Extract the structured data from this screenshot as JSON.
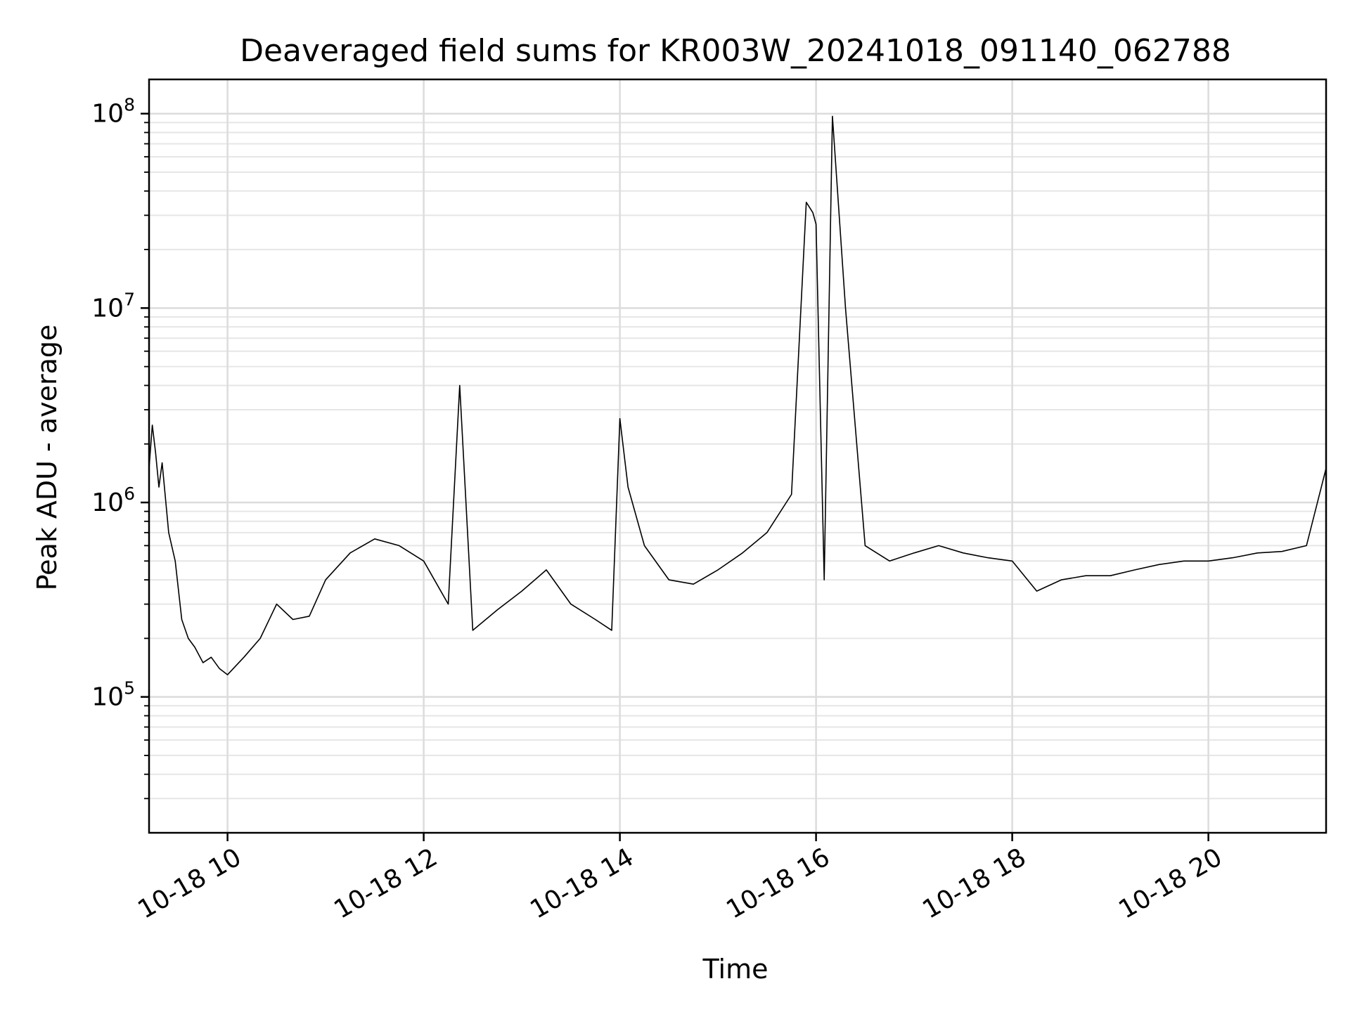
{
  "chart_data": {
    "type": "line",
    "title": "Deaveraged field sums for KR003W_20241018_091140_062788",
    "xlabel": "Time",
    "ylabel": "Peak ADU - average",
    "yscale": "log",
    "grid": true,
    "line_color": "#000000",
    "xlim": [
      "10-18 09:12",
      "10-18 21:12"
    ],
    "ylim": [
      20000,
      150000000
    ],
    "x_ticks": [
      {
        "label": "10-18 10",
        "hour": 10
      },
      {
        "label": "10-18 12",
        "hour": 12
      },
      {
        "label": "10-18 14",
        "hour": 14
      },
      {
        "label": "10-18 16",
        "hour": 16
      },
      {
        "label": "10-18 18",
        "hour": 18
      },
      {
        "label": "10-18 20",
        "hour": 20
      }
    ],
    "y_ticks": [
      {
        "base": "10",
        "exp": "5",
        "value": 100000
      },
      {
        "base": "10",
        "exp": "6",
        "value": 1000000
      },
      {
        "base": "10",
        "exp": "7",
        "value": 10000000
      },
      {
        "base": "10",
        "exp": "8",
        "value": 100000000
      }
    ],
    "series": [
      {
        "x": [
          "10-18 09:12",
          "10-18 09:14",
          "10-18 09:16",
          "10-18 09:18",
          "10-18 09:20",
          "10-18 09:24",
          "10-18 09:28",
          "10-18 09:32",
          "10-18 09:36",
          "10-18 09:40",
          "10-18 09:45",
          "10-18 09:50",
          "10-18 09:55",
          "10-18 10:00",
          "10-18 10:10",
          "10-18 10:20",
          "10-18 10:30",
          "10-18 10:40",
          "10-18 10:50",
          "10-18 11:00",
          "10-18 11:15",
          "10-18 11:30",
          "10-18 11:45",
          "10-18 12:00",
          "10-18 12:15",
          "10-18 12:22",
          "10-18 12:30",
          "10-18 12:45",
          "10-18 13:00",
          "10-18 13:15",
          "10-18 13:30",
          "10-18 13:45",
          "10-18 13:55",
          "10-18 14:00",
          "10-18 14:05",
          "10-18 14:15",
          "10-18 14:30",
          "10-18 14:45",
          "10-18 15:00",
          "10-18 15:15",
          "10-18 15:30",
          "10-18 15:45",
          "10-18 15:54",
          "10-18 15:58",
          "10-18 16:00",
          "10-18 16:05",
          "10-18 16:10",
          "10-18 16:18",
          "10-18 16:30",
          "10-18 16:45",
          "10-18 17:00",
          "10-18 17:15",
          "10-18 17:30",
          "10-18 17:45",
          "10-18 18:00",
          "10-18 18:15",
          "10-18 18:30",
          "10-18 18:45",
          "10-18 19:00",
          "10-18 19:15",
          "10-18 19:30",
          "10-18 19:45",
          "10-18 20:00",
          "10-18 20:15",
          "10-18 20:30",
          "10-18 20:45",
          "10-18 21:00",
          "10-18 21:12"
        ],
        "y": [
          1500000,
          2500000,
          1800000,
          1200000,
          1600000,
          700000,
          500000,
          250000,
          200000,
          180000,
          150000,
          160000,
          140000,
          130000,
          160000,
          200000,
          300000,
          250000,
          260000,
          400000,
          550000,
          650000,
          600000,
          500000,
          300000,
          4000000,
          220000,
          280000,
          350000,
          450000,
          300000,
          250000,
          220000,
          2700000,
          1200000,
          600000,
          400000,
          380000,
          450000,
          550000,
          700000,
          1100000,
          35000000,
          31000000,
          27000000,
          400000,
          97000000,
          10000000,
          600000,
          500000,
          550000,
          600000,
          550000,
          520000,
          500000,
          350000,
          400000,
          420000,
          420000,
          450000,
          480000,
          500000,
          500000,
          520000,
          550000,
          560000,
          600000,
          1500000
        ]
      }
    ]
  }
}
